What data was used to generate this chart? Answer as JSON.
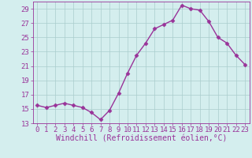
{
  "x": [
    0,
    1,
    2,
    3,
    4,
    5,
    6,
    7,
    8,
    9,
    10,
    11,
    12,
    13,
    14,
    15,
    16,
    17,
    18,
    19,
    20,
    21,
    22,
    23
  ],
  "y": [
    15.5,
    15.2,
    15.5,
    15.8,
    15.5,
    15.2,
    14.5,
    13.5,
    14.8,
    17.2,
    20.0,
    22.5,
    24.2,
    26.2,
    26.8,
    27.4,
    29.5,
    29.0,
    28.8,
    27.2,
    25.0,
    24.2,
    22.5,
    21.2
  ],
  "xlabel": "Windchill (Refroidissement éolien,°C)",
  "ylim": [
    13,
    30
  ],
  "xlim_min": -0.5,
  "xlim_max": 23.5,
  "yticks": [
    13,
    15,
    17,
    19,
    21,
    23,
    25,
    27,
    29
  ],
  "xticks": [
    0,
    1,
    2,
    3,
    4,
    5,
    6,
    7,
    8,
    9,
    10,
    11,
    12,
    13,
    14,
    15,
    16,
    17,
    18,
    19,
    20,
    21,
    22,
    23
  ],
  "line_color": "#993399",
  "marker": "D",
  "marker_size": 2.5,
  "bg_color": "#d4eeee",
  "grid_color": "#aacccc",
  "font_color": "#993399",
  "font_family": "monospace",
  "xlabel_fontsize": 7,
  "tick_fontsize": 6.5,
  "line_width": 1.0
}
